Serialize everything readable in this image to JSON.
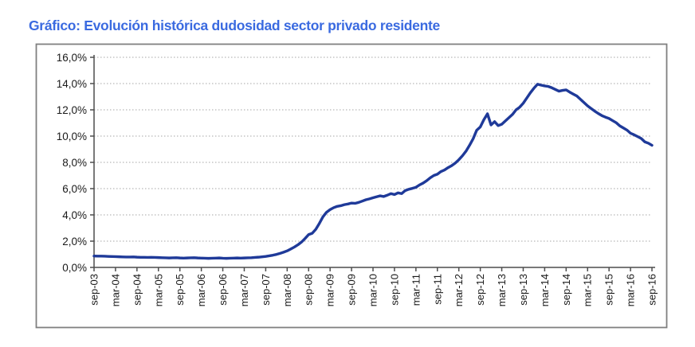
{
  "page": {
    "background_color": "#ffffff",
    "title_color": "#3a6ae0",
    "text_color": "#1a1a1a"
  },
  "chart_data": {
    "type": "line",
    "title": "Gráfico: Evolución histórica dudosidad sector privado residente",
    "xlabel": "",
    "ylabel": "",
    "legend": "none",
    "grid": "horizontal-dotted",
    "frequency": "monthly",
    "x_range": "sep-03 to sep-16",
    "ylim": [
      0,
      16
    ],
    "y_step_pct": 2,
    "y_tick_labels": [
      "0,0%",
      "2,0%",
      "4,0%",
      "6,0%",
      "8,0%",
      "10,0%",
      "12,0%",
      "14,0%",
      "16,0%"
    ],
    "x_tick_labels": [
      "sep-03",
      "mar-04",
      "sep-04",
      "mar-05",
      "sep-05",
      "mar-06",
      "sep-06",
      "mar-07",
      "sep-07",
      "mar-08",
      "sep-08",
      "mar-09",
      "sep-09",
      "mar-10",
      "sep-10",
      "mar-11",
      "sep-11",
      "mar-12",
      "sep-12",
      "mar-13",
      "sep-13",
      "mar-14",
      "sep-14",
      "mar-15",
      "sep-15",
      "mar-16",
      "sep-16"
    ],
    "values_unit": "percent",
    "values": [
      0.87,
      0.86,
      0.86,
      0.85,
      0.84,
      0.83,
      0.82,
      0.81,
      0.8,
      0.79,
      0.79,
      0.8,
      0.78,
      0.77,
      0.77,
      0.76,
      0.77,
      0.76,
      0.75,
      0.74,
      0.73,
      0.72,
      0.73,
      0.74,
      0.72,
      0.71,
      0.72,
      0.73,
      0.74,
      0.72,
      0.71,
      0.7,
      0.69,
      0.7,
      0.71,
      0.72,
      0.7,
      0.69,
      0.7,
      0.71,
      0.72,
      0.71,
      0.72,
      0.73,
      0.74,
      0.76,
      0.78,
      0.81,
      0.84,
      0.88,
      0.93,
      0.99,
      1.07,
      1.16,
      1.26,
      1.4,
      1.55,
      1.72,
      1.93,
      2.2,
      2.5,
      2.6,
      2.9,
      3.35,
      3.85,
      4.2,
      4.4,
      4.55,
      4.65,
      4.7,
      4.78,
      4.83,
      4.9,
      4.88,
      4.95,
      5.05,
      5.15,
      5.22,
      5.3,
      5.38,
      5.45,
      5.4,
      5.5,
      5.62,
      5.55,
      5.68,
      5.62,
      5.85,
      5.95,
      6.02,
      6.1,
      6.28,
      6.42,
      6.6,
      6.82,
      7.0,
      7.1,
      7.3,
      7.42,
      7.6,
      7.75,
      7.95,
      8.2,
      8.5,
      8.85,
      9.3,
      9.8,
      10.45,
      10.7,
      11.25,
      11.7,
      10.85,
      11.1,
      10.8,
      10.9,
      11.15,
      11.4,
      11.65,
      12.0,
      12.2,
      12.5,
      12.9,
      13.3,
      13.65,
      13.95,
      13.88,
      13.82,
      13.78,
      13.68,
      13.55,
      13.42,
      13.48,
      13.52,
      13.35,
      13.2,
      13.05,
      12.8,
      12.55,
      12.3,
      12.1,
      11.9,
      11.72,
      11.56,
      11.44,
      11.34,
      11.18,
      11.02,
      10.78,
      10.62,
      10.46,
      10.22,
      10.1,
      9.96,
      9.82,
      9.56,
      9.46,
      9.3
    ],
    "line_color": "#1f3a99",
    "grid_color": "#a6a6a6",
    "axis_color": "#4d4d4d",
    "border_color": "#808080"
  }
}
